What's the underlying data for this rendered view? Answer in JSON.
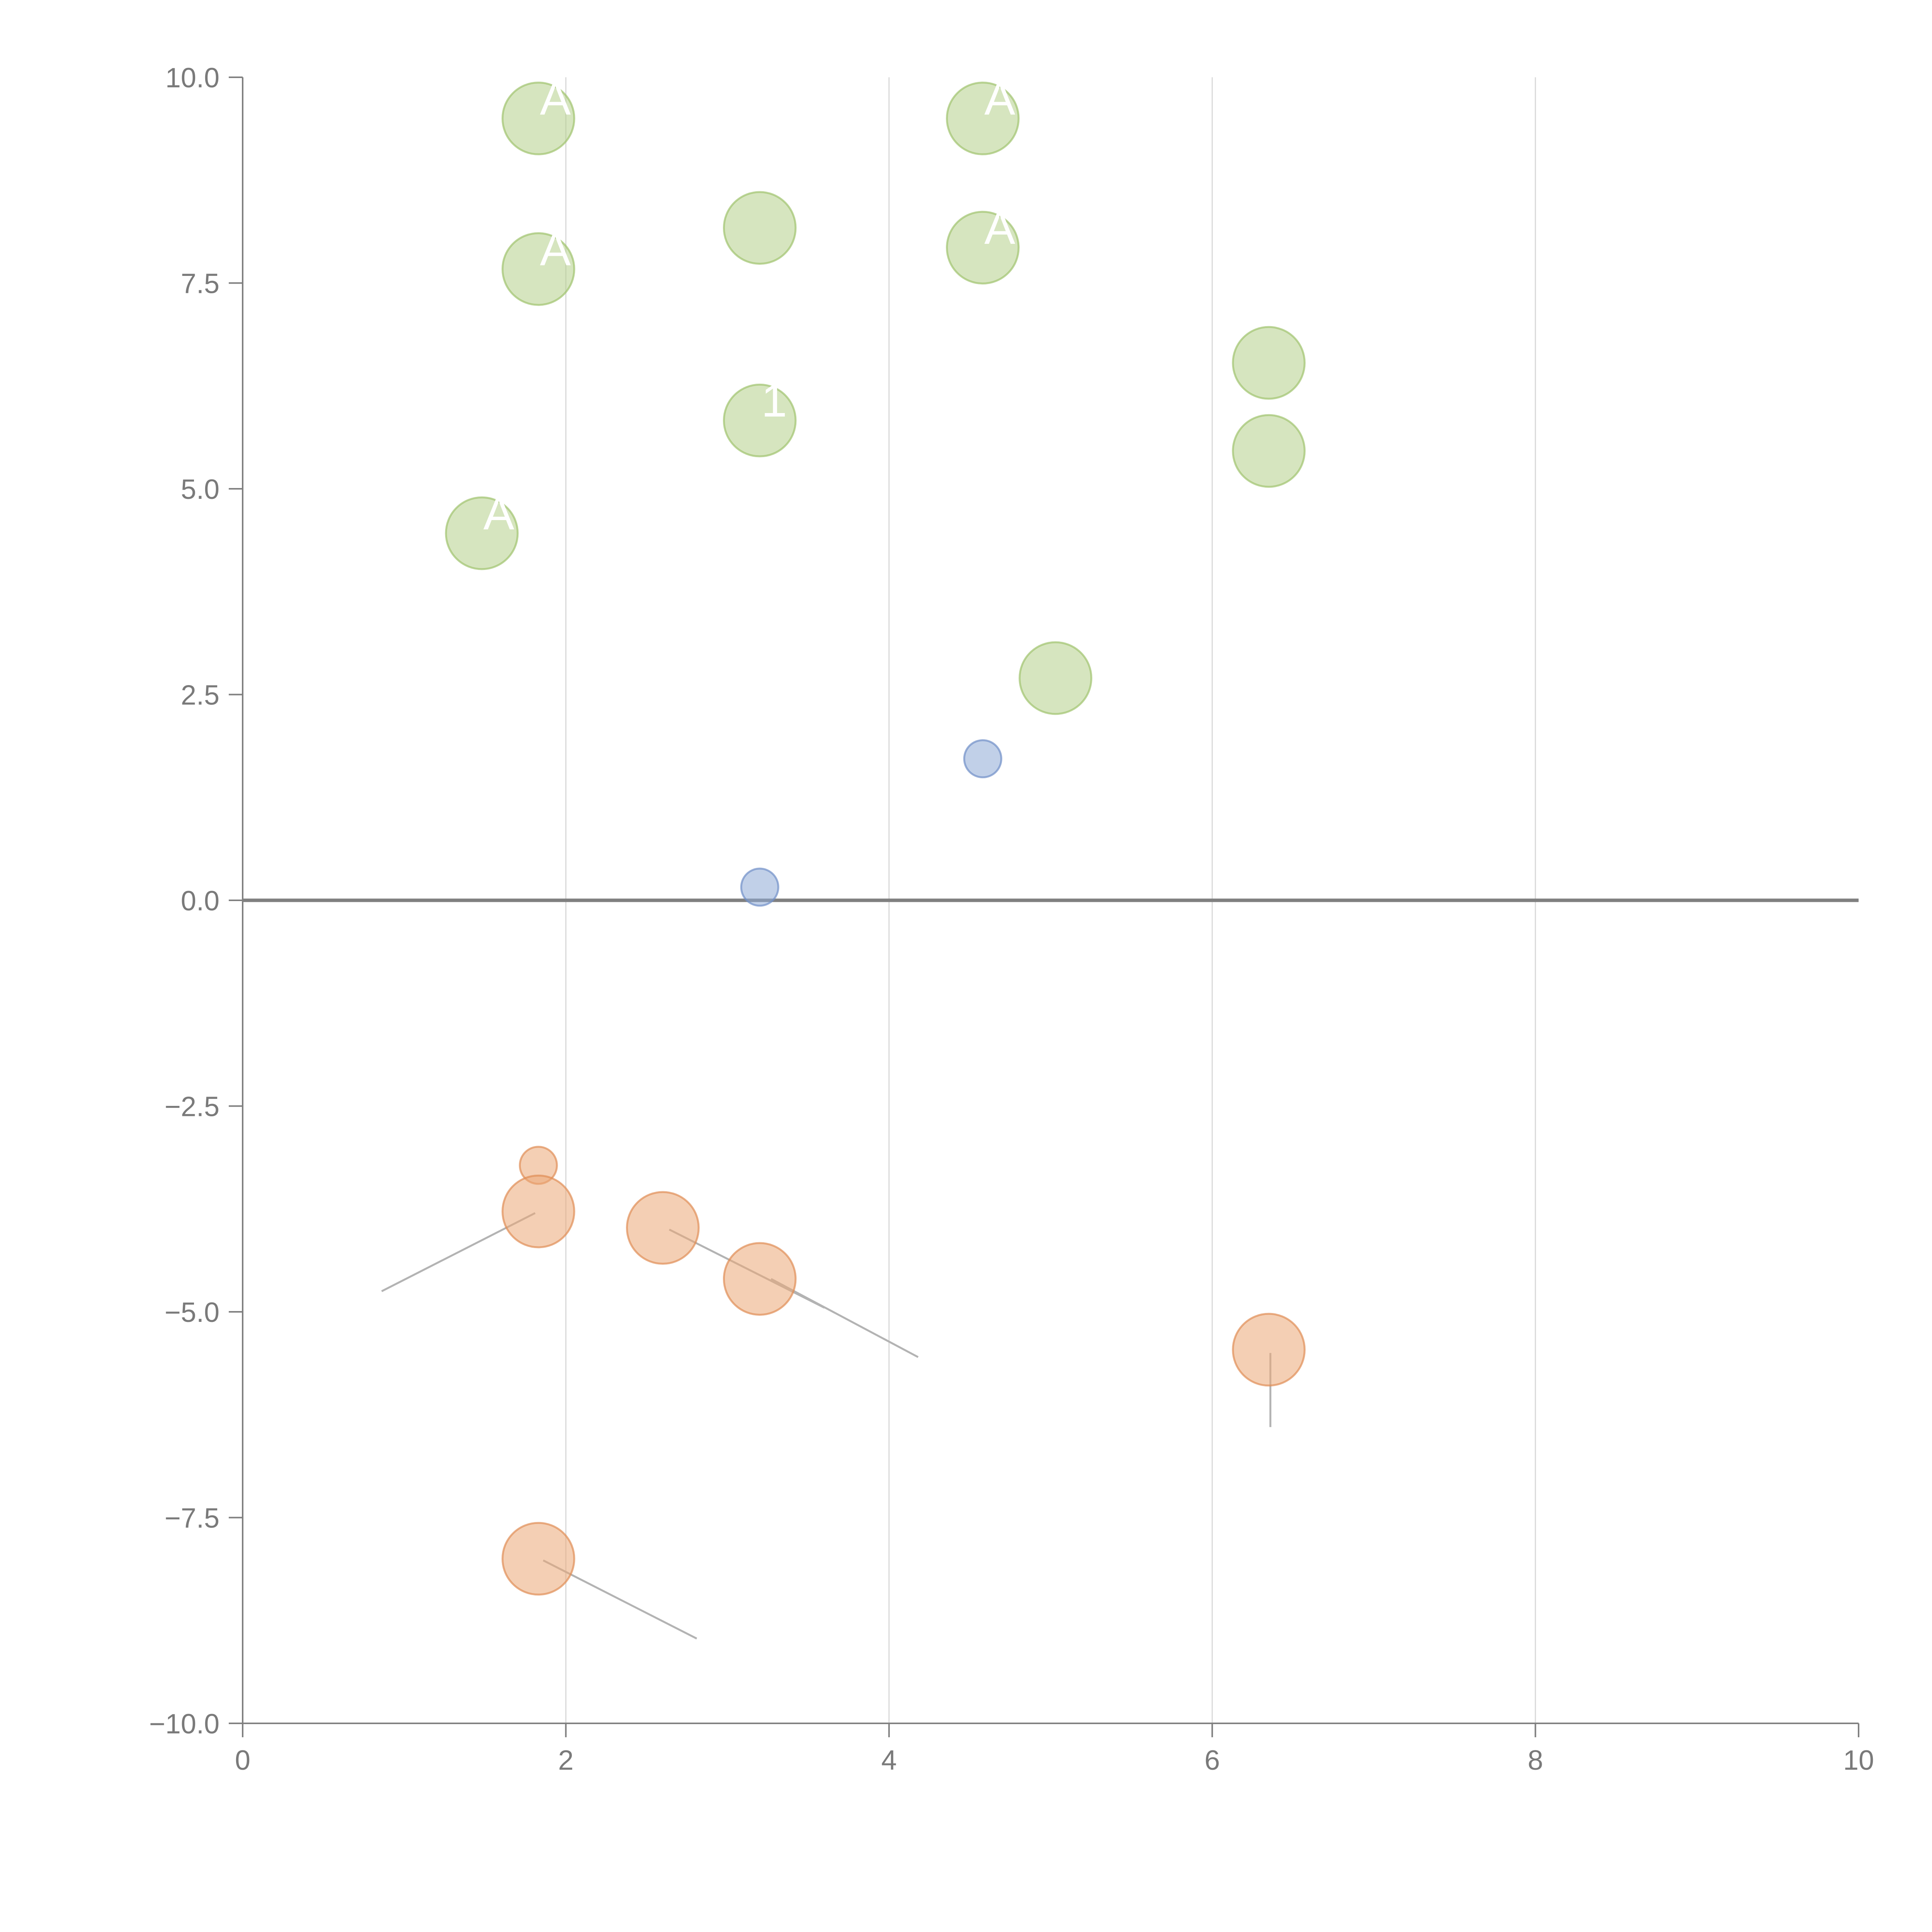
{
  "chart_data": {
    "type": "scatter",
    "title": "",
    "xlabel": "",
    "ylabel": "",
    "xlim": [
      0,
      10
    ],
    "ylim": [
      -10,
      10
    ],
    "x_ticks": [
      0,
      2,
      4,
      6,
      8,
      10
    ],
    "y_ticks": [
      -10.0,
      -7.5,
      -5.0,
      -2.5,
      0.0,
      2.5,
      5.0,
      7.5,
      10.0
    ],
    "x_tick_labels": [
      "0",
      "2",
      "4",
      "6",
      "8",
      "10"
    ],
    "y_tick_labels": [
      "−10.0",
      "−7.5",
      "−5.0",
      "−2.5",
      "0.0",
      "2.5",
      "5.0",
      "7.5",
      "10.0"
    ],
    "grid": "vertical",
    "reference_line_y": 0,
    "colors": {
      "green": "#b5d08a",
      "green_edge": "#9fc36e",
      "blue": "#8ea9d6",
      "blue_edge": "#6f8fc7",
      "orange": "#eba777",
      "orange_edge": "#e08d55",
      "grid": "#d9d9d9",
      "axis": "#808080",
      "leader": "#b3b3b3"
    },
    "series": [
      {
        "name": "green",
        "points": [
          {
            "x": 1.83,
            "y": 9.5,
            "size": 29,
            "label": "A"
          },
          {
            "x": 4.58,
            "y": 9.5,
            "size": 29,
            "label": "A"
          },
          {
            "x": 3.2,
            "y": 8.17,
            "size": 29,
            "label": ""
          },
          {
            "x": 1.83,
            "y": 7.67,
            "size": 29,
            "label": "A"
          },
          {
            "x": 4.58,
            "y": 7.93,
            "size": 29,
            "label": "A"
          },
          {
            "x": 6.35,
            "y": 6.53,
            "size": 29,
            "label": ""
          },
          {
            "x": 3.2,
            "y": 5.83,
            "size": 29,
            "label": "1"
          },
          {
            "x": 6.35,
            "y": 5.46,
            "size": 29,
            "label": ""
          },
          {
            "x": 1.48,
            "y": 4.46,
            "size": 29,
            "label": "A"
          },
          {
            "x": 5.03,
            "y": 2.7,
            "size": 29,
            "label": ""
          }
        ]
      },
      {
        "name": "blue",
        "points": [
          {
            "x": 4.58,
            "y": 1.72,
            "size": 15
          },
          {
            "x": 3.2,
            "y": 0.16,
            "size": 15
          }
        ]
      },
      {
        "name": "orange",
        "points": [
          {
            "x": 1.83,
            "y": -3.22,
            "size": 15
          },
          {
            "x": 1.83,
            "y": -3.78,
            "size": 29
          },
          {
            "x": 2.6,
            "y": -3.98,
            "size": 29
          },
          {
            "x": 3.2,
            "y": -4.6,
            "size": 29
          },
          {
            "x": 6.35,
            "y": -5.46,
            "size": 29
          },
          {
            "x": 1.83,
            "y": -8.0,
            "size": 29
          }
        ]
      }
    ],
    "leader_lines": [
      {
        "x1": 1.81,
        "y1": -3.8,
        "x2": 0.86,
        "y2": -4.75
      },
      {
        "x1": 2.64,
        "y1": -4.0,
        "x2": 3.6,
        "y2": -4.95
      },
      {
        "x1": 3.27,
        "y1": -4.6,
        "x2": 4.18,
        "y2": -5.55
      },
      {
        "x1": 6.36,
        "y1": -5.5,
        "x2": 6.36,
        "y2": -6.4
      },
      {
        "x1": 1.86,
        "y1": -8.02,
        "x2": 2.81,
        "y2": -8.97
      }
    ]
  }
}
